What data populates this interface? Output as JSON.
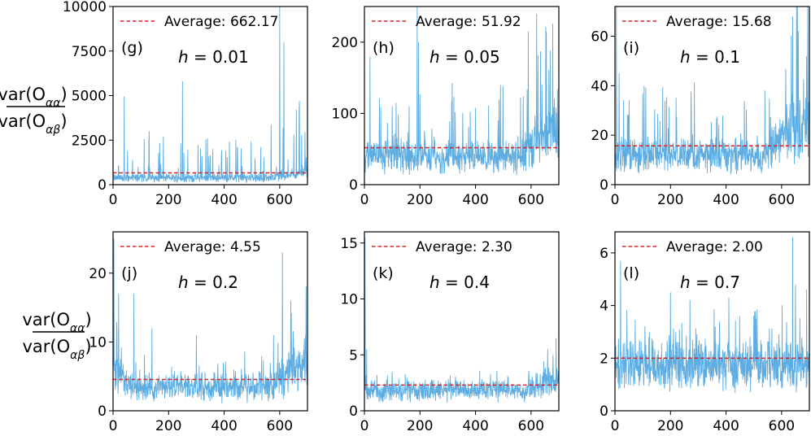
{
  "figure": {
    "ylabel_numerator": "var(O",
    "ylabel_num_sub": "αα",
    "ylabel_denominator": "var(O",
    "ylabel_den_sub": "αβ",
    "ylabel_close": ")",
    "legend_label_prefix": "Average: ",
    "h_label_prefix": "h",
    "h_label_equals": " = "
  },
  "colors": {
    "series": "#5dade2",
    "average": "#d62728",
    "axis": "#000000"
  },
  "chart_data": [
    {
      "type": "line",
      "panel": "(g)",
      "h": "0.01",
      "average": 662.17,
      "average_label": "662.17",
      "xlim": [
        0,
        700
      ],
      "ylim": [
        0,
        10000
      ],
      "xticks": [
        0,
        200,
        400,
        600
      ],
      "yticks": [
        0,
        2500,
        5000,
        7500,
        10000
      ],
      "xtick_labels": [
        "0",
        "200",
        "400",
        "600"
      ],
      "ytick_labels": [
        "0",
        "2500",
        "5000",
        "7500",
        "10000"
      ],
      "profile": {
        "base": 450,
        "noise": 300,
        "spike_prob": 0.08,
        "spike_max": 2400,
        "tail_start": 540,
        "tail_gain": 1.8
      },
      "peaks": [
        [
          40,
          4950
        ],
        [
          130,
          3000
        ],
        [
          250,
          5800
        ],
        [
          340,
          2600
        ],
        [
          600,
          10000
        ],
        [
          615,
          8000
        ],
        [
          660,
          4200
        ]
      ]
    },
    {
      "type": "line",
      "panel": "(h)",
      "h": "0.05",
      "average": 51.92,
      "average_label": "51.92",
      "xlim": [
        0,
        700
      ],
      "ylim": [
        0,
        250
      ],
      "xticks": [
        0,
        200,
        400,
        600
      ],
      "yticks": [
        0,
        100,
        200
      ],
      "xtick_labels": [
        "0",
        "200",
        "400",
        "600"
      ],
      "ytick_labels": [
        "0",
        "100",
        "200"
      ],
      "profile": {
        "base": 45,
        "noise": 25,
        "spike_prob": 0.08,
        "spike_max": 95,
        "tail_start": 540,
        "tail_gain": 2.2
      },
      "peaks": [
        [
          20,
          180
        ],
        [
          100,
          110
        ],
        [
          190,
          250
        ],
        [
          195,
          200
        ],
        [
          490,
          140
        ],
        [
          590,
          215
        ],
        [
          620,
          240
        ],
        [
          655,
          215
        ]
      ]
    },
    {
      "type": "line",
      "panel": "(i)",
      "h": "0.1",
      "average": 15.68,
      "average_label": "15.68",
      "xlim": [
        0,
        700
      ],
      "ylim": [
        0,
        72
      ],
      "xticks": [
        0,
        200,
        400,
        600
      ],
      "yticks": [
        0,
        20,
        40,
        60
      ],
      "xtick_labels": [
        "0",
        "200",
        "400",
        "600"
      ],
      "ytick_labels": [
        "0",
        "20",
        "40",
        "60"
      ],
      "profile": {
        "base": 14,
        "noise": 8,
        "spike_prob": 0.08,
        "spike_max": 25,
        "tail_start": 540,
        "tail_gain": 2.4
      },
      "peaks": [
        [
          5,
          72
        ],
        [
          15,
          45
        ],
        [
          105,
          40
        ],
        [
          180,
          34
        ],
        [
          540,
          38
        ],
        [
          640,
          68
        ],
        [
          660,
          62
        ],
        [
          690,
          52
        ]
      ]
    },
    {
      "type": "line",
      "panel": "(j)",
      "h": "0.2",
      "average": 4.55,
      "average_label": "4.55",
      "xlim": [
        0,
        700
      ],
      "ylim": [
        0,
        26
      ],
      "xticks": [
        0,
        200,
        400,
        600
      ],
      "yticks": [
        0,
        10,
        20
      ],
      "xtick_labels": [
        "0",
        "200",
        "400",
        "600"
      ],
      "ytick_labels": [
        "0",
        "10",
        "20"
      ],
      "profile": {
        "base": 4.0,
        "noise": 2.5,
        "spike_prob": 0.05,
        "spike_max": 5,
        "tail_start": 560,
        "tail_gain": 2.2,
        "head_end": 60,
        "head_gain": 1.8
      },
      "peaks": [
        [
          3,
          25
        ],
        [
          20,
          17
        ],
        [
          75,
          17
        ],
        [
          140,
          12
        ],
        [
          300,
          11
        ],
        [
          610,
          23
        ],
        [
          640,
          16
        ]
      ]
    },
    {
      "type": "line",
      "panel": "(k)",
      "h": "0.4",
      "average": 2.3,
      "average_label": "2.30",
      "xlim": [
        0,
        700
      ],
      "ylim": [
        0,
        16
      ],
      "xticks": [
        0,
        200,
        400,
        600
      ],
      "yticks": [
        0,
        5,
        10,
        15
      ],
      "xtick_labels": [
        "0",
        "200",
        "400",
        "600"
      ],
      "ytick_labels": [
        "0",
        "5",
        "10",
        "15"
      ],
      "profile": {
        "base": 2.1,
        "noise": 1.0,
        "spike_prob": 0.04,
        "spike_max": 1.5,
        "tail_start": 580,
        "tail_gain": 1.6
      },
      "peaks": [
        [
          2,
          15.5
        ],
        [
          8,
          5.5
        ],
        [
          100,
          3.5
        ],
        [
          660,
          5.5
        ],
        [
          690,
          6.5
        ]
      ]
    },
    {
      "type": "line",
      "panel": "(l)",
      "h": "0.7",
      "average": 2.0,
      "average_label": "2.00",
      "xlim": [
        0,
        700
      ],
      "ylim": [
        0,
        6.8
      ],
      "xticks": [
        0,
        200,
        400,
        600
      ],
      "yticks": [
        0,
        2,
        4,
        6
      ],
      "xtick_labels": [
        "0",
        "200",
        "400",
        "600"
      ],
      "ytick_labels": [
        "0",
        "2",
        "4",
        "6"
      ],
      "profile": {
        "base": 2.0,
        "noise": 0.9,
        "spike_prob": 0.1,
        "spike_max": 1.8
      },
      "peaks": [
        [
          20,
          5.7
        ],
        [
          200,
          4.5
        ],
        [
          270,
          4.2
        ],
        [
          410,
          4.3
        ],
        [
          640,
          6.6
        ],
        [
          650,
          4.8
        ],
        [
          690,
          4.6
        ]
      ]
    }
  ]
}
